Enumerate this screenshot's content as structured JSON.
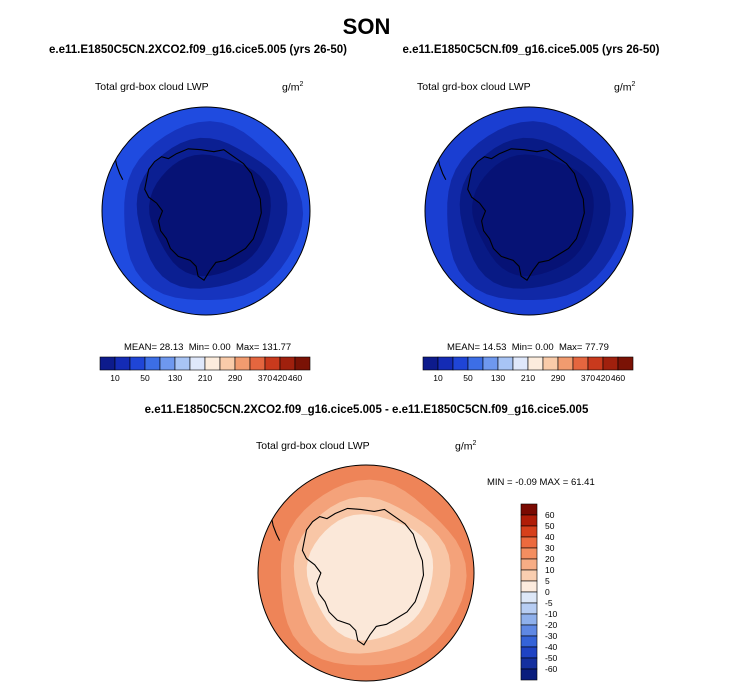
{
  "season": "SON",
  "colors": {
    "boundary": "#000000",
    "land": "#000000"
  },
  "chart_data": [
    {
      "type": "heatmap",
      "projection": "south-polar-stereographic",
      "title": "e.e11.E1850C5CN.2XCO2.f09_g16.cice5.005 (yrs 26-50)",
      "variable": "Total grd-box cloud LWP",
      "units": "g/m2",
      "units_base": "g/m",
      "units_exp": "2",
      "stats": {
        "mean_label": "MEAN=",
        "mean": "28.13",
        "min_label": "Min=",
        "min": "0.00",
        "max_label": "Max=",
        "max": "131.77"
      },
      "colorbar": {
        "orientation": "horizontal",
        "colors": [
          "#0d1b8c",
          "#142bb5",
          "#1f45d6",
          "#3c6ee6",
          "#6e98ef",
          "#a8c4f5",
          "#dfe8fb",
          "#fcecdd",
          "#f9cba9",
          "#f19b6f",
          "#e4663f",
          "#c93a1d",
          "#a0200d",
          "#7a1205"
        ],
        "labels": [
          "10",
          "50",
          "130",
          "210",
          "290",
          "370",
          "420",
          "460"
        ]
      },
      "rings": [
        {
          "level": "outer",
          "color": "#1f4be0"
        },
        {
          "level": "middle",
          "color": "#1634be"
        },
        {
          "level": "inner",
          "color": "#0b1f92"
        },
        {
          "level": "interior",
          "color": "#061275"
        }
      ]
    },
    {
      "type": "heatmap",
      "projection": "south-polar-stereographic",
      "title": "e.e11.E1850C5CN.f09_g16.cice5.005 (yrs 26-50)",
      "variable": "Total grd-box cloud LWP",
      "units": "g/m2",
      "units_base": "g/m",
      "units_exp": "2",
      "stats": {
        "mean_label": "MEAN=",
        "mean": "14.53",
        "min_label": "Min=",
        "min": "0.00",
        "max_label": "Max=",
        "max": "77.79"
      },
      "colorbar": {
        "orientation": "horizontal",
        "colors": [
          "#0d1b8c",
          "#142bb5",
          "#1f45d6",
          "#3c6ee6",
          "#6e98ef",
          "#a8c4f5",
          "#dfe8fb",
          "#fcecdd",
          "#f9cba9",
          "#f19b6f",
          "#e4663f",
          "#c93a1d",
          "#a0200d",
          "#7a1205"
        ],
        "labels": [
          "10",
          "50",
          "130",
          "210",
          "290",
          "370",
          "420",
          "460"
        ]
      },
      "rings": [
        {
          "level": "outer",
          "color": "#1a3ed2"
        },
        {
          "level": "middle",
          "color": "#1028a6"
        },
        {
          "level": "inner",
          "color": "#081a85"
        },
        {
          "level": "interior",
          "color": "#061275"
        }
      ]
    },
    {
      "type": "heatmap",
      "projection": "south-polar-stereographic",
      "title": "e.e11.E1850C5CN.2XCO2.f09_g16.cice5.005 - e.e11.E1850C5CN.f09_g16.cice5.005",
      "variable": "Total grd-box cloud LWP",
      "units": "g/m2",
      "units_base": "g/m",
      "units_exp": "2",
      "stats": {
        "min_label": "MIN =",
        "min": "-0.09",
        "max_label": "MAX =",
        "max": "61.41"
      },
      "colorbar": {
        "orientation": "vertical",
        "colors": [
          "#7a0a02",
          "#b01d08",
          "#d6401c",
          "#ec6a3e",
          "#f48e60",
          "#f7ad85",
          "#f9ceb0",
          "#fcebde",
          "#dde7f7",
          "#b7cdf3",
          "#8fb0ec",
          "#5f88e4",
          "#3563d8",
          "#1f43c4",
          "#15309f",
          "#0a1d7d"
        ],
        "labels": [
          "60",
          "50",
          "40",
          "30",
          "20",
          "10",
          "5",
          "0",
          "-5",
          "-10",
          "-20",
          "-30",
          "-40",
          "-50",
          "-60"
        ]
      },
      "rings": [
        {
          "level": "outer",
          "color": "#ee8458"
        },
        {
          "level": "middle",
          "color": "#f4a27a"
        },
        {
          "level": "inner",
          "color": "#f8c6a6"
        },
        {
          "level": "interior",
          "color": "#fbe8d9"
        }
      ]
    }
  ]
}
